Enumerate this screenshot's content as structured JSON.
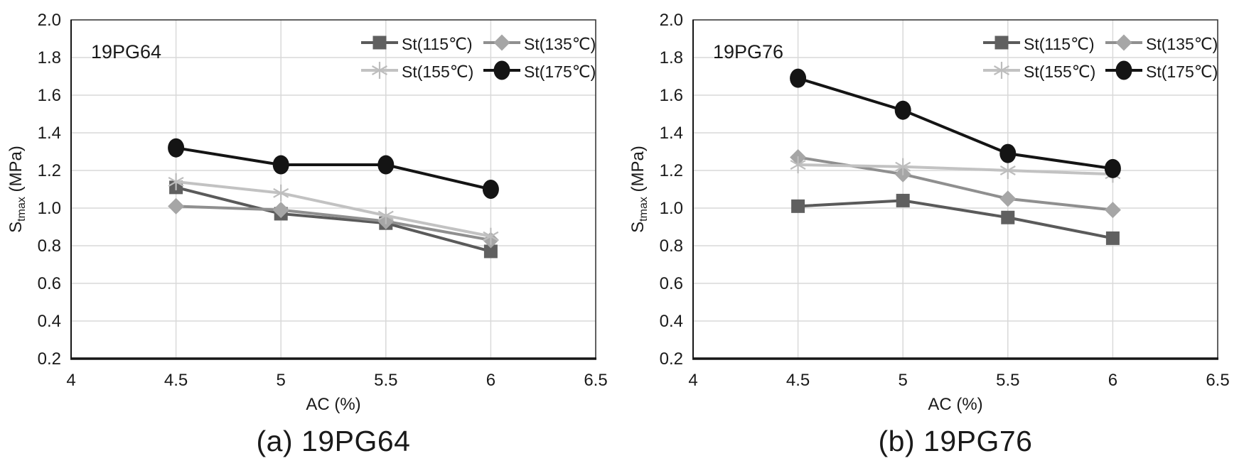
{
  "page": {
    "background": "#ffffff",
    "text_color": "#1a1a1a",
    "gridline_color": "#d9d9d9",
    "axis_color": "#161616",
    "border_color": "#3a3a3a"
  },
  "chart_data": [
    {
      "type": "line",
      "panel_label": "19PG64",
      "caption": "(a) 19PG64",
      "xlabel": "AC (%)",
      "ylabel": "Stmax (MPa)",
      "ylabel_parts": {
        "main": "S",
        "sub": "tmax",
        "rest": " (MPa)"
      },
      "xlim": [
        4,
        6.5
      ],
      "xticks": [
        4,
        4.5,
        5,
        5.5,
        6,
        6.5
      ],
      "ylim": [
        0.2,
        2.0
      ],
      "yticks": [
        0.2,
        0.4,
        0.6,
        0.8,
        1.0,
        1.2,
        1.4,
        1.6,
        1.8,
        2.0
      ],
      "grid": true,
      "legend_position": "top-right",
      "x": [
        4.5,
        5,
        5.5,
        6
      ],
      "series": [
        {
          "name": "St(115℃)",
          "marker": "square",
          "color": "#5a5a5a",
          "marker_color": "#606060",
          "values": [
            1.11,
            0.97,
            0.92,
            0.77
          ]
        },
        {
          "name": "St(135℃)",
          "marker": "diamond",
          "color": "#8f8f8f",
          "marker_color": "#a6a6a6",
          "values": [
            1.01,
            0.99,
            0.93,
            0.83
          ]
        },
        {
          "name": "St(155℃)",
          "marker": "star",
          "color": "#c2c2c2",
          "marker_color": "#bdbdbd",
          "values": [
            1.14,
            1.08,
            0.96,
            0.85
          ]
        },
        {
          "name": "St(175℃)",
          "marker": "circle",
          "color": "#141414",
          "marker_color": "#141414",
          "values": [
            1.32,
            1.23,
            1.23,
            1.1
          ]
        }
      ]
    },
    {
      "type": "line",
      "panel_label": "19PG76",
      "caption": "(b) 19PG76",
      "xlabel": "AC (%)",
      "ylabel": "Stmax (MPa)",
      "ylabel_parts": {
        "main": "S",
        "sub": "tmax",
        "rest": " (MPa)"
      },
      "xlim": [
        4,
        6.5
      ],
      "xticks": [
        4,
        4.5,
        5,
        5.5,
        6,
        6.5
      ],
      "ylim": [
        0.2,
        2.0
      ],
      "yticks": [
        0.2,
        0.4,
        0.6,
        0.8,
        1.0,
        1.2,
        1.4,
        1.6,
        1.8,
        2.0
      ],
      "grid": true,
      "legend_position": "top-right",
      "x": [
        4.5,
        5,
        5.5,
        6
      ],
      "series": [
        {
          "name": "St(115℃)",
          "marker": "square",
          "color": "#5a5a5a",
          "marker_color": "#606060",
          "values": [
            1.01,
            1.04,
            0.95,
            0.84
          ]
        },
        {
          "name": "St(135℃)",
          "marker": "diamond",
          "color": "#8f8f8f",
          "marker_color": "#a6a6a6",
          "values": [
            1.27,
            1.18,
            1.05,
            0.99
          ]
        },
        {
          "name": "St(155℃)",
          "marker": "star",
          "color": "#c2c2c2",
          "marker_color": "#bdbdbd",
          "values": [
            1.23,
            1.22,
            1.2,
            1.18
          ]
        },
        {
          "name": "St(175℃)",
          "marker": "circle",
          "color": "#141414",
          "marker_color": "#141414",
          "values": [
            1.69,
            1.52,
            1.29,
            1.21
          ]
        }
      ]
    }
  ]
}
